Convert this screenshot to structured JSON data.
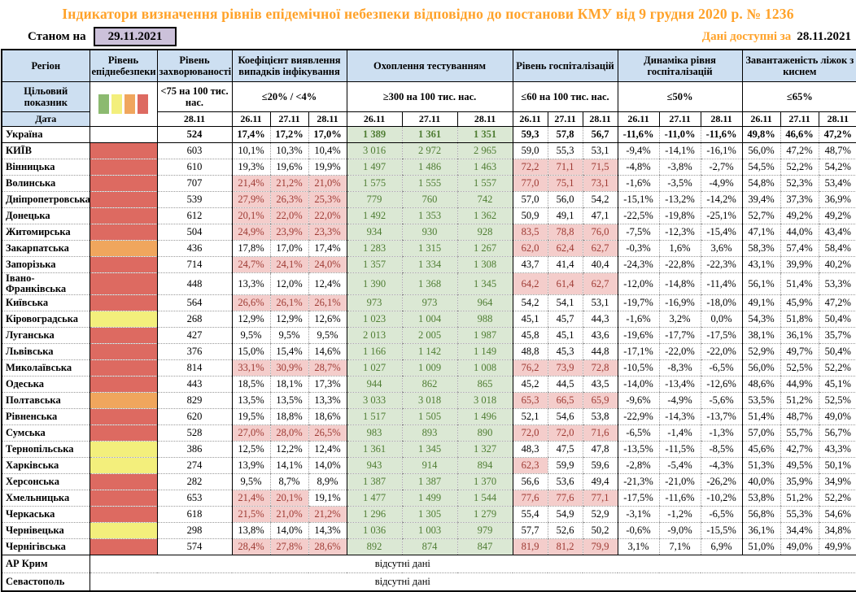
{
  "title": "Індикатори визначення рівнів епідемічної небезпеки відповідно до постанови КМУ від 9 грудня 2020 р. № 1236",
  "topbar": {
    "as_of_label": "Станом на",
    "as_of_date": "29.11.2021",
    "available_label": "Дані доступні за",
    "available_date": "28.11.2021"
  },
  "colors": {
    "title_accent": "#FFA229",
    "header_fill": "#CDDFF1",
    "asof_fill": "#CCC1DA",
    "alert_fill": "#F4CDCB",
    "alert_text": "#9E3A33",
    "good_fill": "#DBE8D4",
    "good_text": "#4F7D33"
  },
  "legend": {
    "order": [
      "green",
      "yellow",
      "orange",
      "red"
    ],
    "colors": {
      "green": "#8CBA70",
      "yellow": "#F3EF7C",
      "orange": "#F0A65D",
      "red": "#DD6A61"
    }
  },
  "table": {
    "header": {
      "region_label": "Регіон",
      "target_label": "Цільовий показник",
      "date_label": "Дата",
      "groups": [
        {
          "id": "risk",
          "label": "Рівень епіднебезпеки"
        },
        {
          "id": "incidence",
          "label": "Рівень захворюваності",
          "target": "<75 на 100 тис. нас.",
          "dates": [
            "28.11"
          ]
        },
        {
          "id": "detection",
          "label": "Коефіцієнт виявлення випадків інфікування",
          "target": "≤20% / <4%",
          "dates": [
            "26.11",
            "27.11",
            "28.11"
          ]
        },
        {
          "id": "testing",
          "label": "Охоплення тестуванням",
          "target": "≥300 на 100 тис. нас.",
          "dates": [
            "26.11",
            "27.11",
            "28.11"
          ]
        },
        {
          "id": "hospitalization",
          "label": "Рівень госпіталізацій",
          "target": "≤60 на 100 тис. нас.",
          "dates": [
            "26.11",
            "27.11",
            "28.11"
          ]
        },
        {
          "id": "dynamics",
          "label": "Динаміка рівня госпіталізацій",
          "target": "≤50%",
          "dates": [
            "26.11",
            "27.11",
            "28.11"
          ]
        },
        {
          "id": "oxygen",
          "label": "Завантаженість ліжок з киснем",
          "target": "≤65%",
          "dates": [
            "26.11",
            "27.11",
            "28.11"
          ]
        }
      ]
    },
    "thresholds": {
      "detection": 20,
      "testing_min": 300,
      "hospitalization": 60,
      "dynamics": 50,
      "oxygen": 65
    },
    "rows": [
      {
        "region": "Україна",
        "risk": "none",
        "bold": true,
        "incidence": "524",
        "detection": [
          "17,4%",
          "17,2%",
          "17,0%"
        ],
        "testing": [
          "1 389",
          "1 361",
          "1 351"
        ],
        "hospitalization": [
          "59,3",
          "57,8",
          "56,7"
        ],
        "dynamics": [
          "-11,6%",
          "-11,0%",
          "-11,6%"
        ],
        "oxygen": [
          "49,8%",
          "46,6%",
          "47,2%"
        ]
      },
      {
        "region": "КИЇВ",
        "risk": "red",
        "incidence": "603",
        "detection": [
          "10,1%",
          "10,3%",
          "10,4%"
        ],
        "testing": [
          "3 016",
          "2 972",
          "2 965"
        ],
        "hospitalization": [
          "59,0",
          "55,3",
          "53,1"
        ],
        "dynamics": [
          "-9,4%",
          "-14,1%",
          "-16,1%"
        ],
        "oxygen": [
          "56,0%",
          "47,2%",
          "48,7%"
        ]
      },
      {
        "region": "Вінницька",
        "risk": "red",
        "incidence": "610",
        "detection": [
          "19,3%",
          "19,6%",
          "19,9%"
        ],
        "testing": [
          "1 497",
          "1 486",
          "1 463"
        ],
        "hospitalization": [
          "72,2",
          "71,1",
          "71,5"
        ],
        "dynamics": [
          "-4,8%",
          "-3,8%",
          "-2,7%"
        ],
        "oxygen": [
          "54,5%",
          "52,2%",
          "54,2%"
        ]
      },
      {
        "region": "Волинська",
        "risk": "red",
        "incidence": "707",
        "detection": [
          "21,4%",
          "21,2%",
          "21,0%"
        ],
        "testing": [
          "1 575",
          "1 555",
          "1 557"
        ],
        "hospitalization": [
          "77,0",
          "75,1",
          "73,1"
        ],
        "dynamics": [
          "-1,6%",
          "-3,5%",
          "-4,9%"
        ],
        "oxygen": [
          "54,8%",
          "52,3%",
          "53,4%"
        ]
      },
      {
        "region": "Дніпропетровська",
        "risk": "red",
        "incidence": "539",
        "detection": [
          "27,9%",
          "26,3%",
          "25,3%"
        ],
        "testing": [
          "779",
          "760",
          "742"
        ],
        "hospitalization": [
          "57,0",
          "56,0",
          "54,2"
        ],
        "dynamics": [
          "-15,1%",
          "-13,2%",
          "-14,2%"
        ],
        "oxygen": [
          "39,4%",
          "37,3%",
          "36,9%"
        ]
      },
      {
        "region": "Донецька",
        "risk": "red",
        "incidence": "612",
        "detection": [
          "20,1%",
          "22,0%",
          "22,0%"
        ],
        "testing": [
          "1 492",
          "1 353",
          "1 362"
        ],
        "hospitalization": [
          "50,9",
          "49,1",
          "47,1"
        ],
        "dynamics": [
          "-22,5%",
          "-19,8%",
          "-25,1%"
        ],
        "oxygen": [
          "52,7%",
          "49,2%",
          "49,2%"
        ]
      },
      {
        "region": "Житомирська",
        "risk": "red",
        "incidence": "504",
        "detection": [
          "24,9%",
          "23,9%",
          "23,3%"
        ],
        "testing": [
          "934",
          "930",
          "928"
        ],
        "hospitalization": [
          "83,5",
          "78,8",
          "76,0"
        ],
        "dynamics": [
          "-7,5%",
          "-12,3%",
          "-15,4%"
        ],
        "oxygen": [
          "47,1%",
          "44,0%",
          "43,4%"
        ]
      },
      {
        "region": "Закарпатська",
        "risk": "orange",
        "incidence": "436",
        "detection": [
          "17,8%",
          "17,0%",
          "17,4%"
        ],
        "testing": [
          "1 283",
          "1 315",
          "1 267"
        ],
        "hospitalization": [
          "62,0",
          "62,4",
          "62,7"
        ],
        "dynamics": [
          "-0,3%",
          "1,6%",
          "3,6%"
        ],
        "oxygen": [
          "58,3%",
          "57,4%",
          "58,4%"
        ]
      },
      {
        "region": "Запорізька",
        "risk": "red",
        "incidence": "714",
        "detection": [
          "24,7%",
          "24,1%",
          "24,0%"
        ],
        "testing": [
          "1 357",
          "1 334",
          "1 308"
        ],
        "hospitalization": [
          "43,7",
          "41,4",
          "40,4"
        ],
        "dynamics": [
          "-24,3%",
          "-22,8%",
          "-22,3%"
        ],
        "oxygen": [
          "43,1%",
          "39,9%",
          "40,2%"
        ]
      },
      {
        "region": "Івано-Франківська",
        "risk": "red",
        "incidence": "448",
        "detection": [
          "13,3%",
          "12,0%",
          "12,4%"
        ],
        "testing": [
          "1 390",
          "1 368",
          "1 345"
        ],
        "hospitalization": [
          "64,2",
          "61,4",
          "62,7"
        ],
        "dynamics": [
          "-12,0%",
          "-14,8%",
          "-11,4%"
        ],
        "oxygen": [
          "56,1%",
          "51,4%",
          "53,3%"
        ]
      },
      {
        "region": "Київська",
        "risk": "red",
        "incidence": "564",
        "detection": [
          "26,6%",
          "26,1%",
          "26,1%"
        ],
        "testing": [
          "973",
          "973",
          "964"
        ],
        "hospitalization": [
          "54,2",
          "54,1",
          "53,1"
        ],
        "dynamics": [
          "-19,7%",
          "-16,9%",
          "-18,0%"
        ],
        "oxygen": [
          "49,1%",
          "45,9%",
          "47,2%"
        ]
      },
      {
        "region": "Кіровоградська",
        "risk": "yellow",
        "incidence": "268",
        "detection": [
          "12,9%",
          "12,9%",
          "12,6%"
        ],
        "testing": [
          "1 023",
          "1 004",
          "988"
        ],
        "hospitalization": [
          "45,1",
          "45,7",
          "44,3"
        ],
        "dynamics": [
          "-1,6%",
          "3,2%",
          "0,0%"
        ],
        "oxygen": [
          "54,3%",
          "51,8%",
          "50,4%"
        ]
      },
      {
        "region": "Луганська",
        "risk": "red",
        "incidence": "427",
        "detection": [
          "9,5%",
          "9,5%",
          "9,5%"
        ],
        "testing": [
          "2 013",
          "2 005",
          "1 987"
        ],
        "hospitalization": [
          "45,8",
          "45,1",
          "43,6"
        ],
        "dynamics": [
          "-19,6%",
          "-17,7%",
          "-17,5%"
        ],
        "oxygen": [
          "38,1%",
          "36,1%",
          "35,7%"
        ]
      },
      {
        "region": "Львівська",
        "risk": "red",
        "incidence": "376",
        "detection": [
          "15,0%",
          "15,4%",
          "14,6%"
        ],
        "testing": [
          "1 166",
          "1 142",
          "1 149"
        ],
        "hospitalization": [
          "48,8",
          "45,3",
          "44,8"
        ],
        "dynamics": [
          "-17,1%",
          "-22,0%",
          "-22,0%"
        ],
        "oxygen": [
          "52,9%",
          "49,7%",
          "50,4%"
        ]
      },
      {
        "region": "Миколаївська",
        "risk": "red",
        "incidence": "814",
        "detection": [
          "33,1%",
          "30,9%",
          "28,7%"
        ],
        "testing": [
          "1 027",
          "1 009",
          "1 008"
        ],
        "hospitalization": [
          "76,2",
          "73,9",
          "72,8"
        ],
        "dynamics": [
          "-10,5%",
          "-8,3%",
          "-6,5%"
        ],
        "oxygen": [
          "56,0%",
          "52,5%",
          "52,2%"
        ]
      },
      {
        "region": "Одеська",
        "risk": "red",
        "incidence": "443",
        "detection": [
          "18,5%",
          "18,1%",
          "17,3%"
        ],
        "testing": [
          "944",
          "862",
          "865"
        ],
        "hospitalization": [
          "45,2",
          "44,5",
          "43,5"
        ],
        "dynamics": [
          "-14,0%",
          "-13,4%",
          "-12,6%"
        ],
        "oxygen": [
          "48,6%",
          "44,9%",
          "45,1%"
        ]
      },
      {
        "region": "Полтавська",
        "risk": "orange",
        "incidence": "829",
        "detection": [
          "13,5%",
          "13,5%",
          "13,3%"
        ],
        "testing": [
          "3 033",
          "3 018",
          "3 018"
        ],
        "hospitalization": [
          "65,3",
          "66,5",
          "65,9"
        ],
        "dynamics": [
          "-9,6%",
          "-4,9%",
          "-5,6%"
        ],
        "oxygen": [
          "53,5%",
          "51,2%",
          "52,5%"
        ]
      },
      {
        "region": "Рівненська",
        "risk": "red",
        "incidence": "620",
        "detection": [
          "19,5%",
          "18,8%",
          "18,6%"
        ],
        "testing": [
          "1 517",
          "1 505",
          "1 496"
        ],
        "hospitalization": [
          "52,1",
          "54,6",
          "53,8"
        ],
        "dynamics": [
          "-22,9%",
          "-14,3%",
          "-13,7%"
        ],
        "oxygen": [
          "51,4%",
          "48,7%",
          "49,0%"
        ]
      },
      {
        "region": "Сумська",
        "risk": "red",
        "incidence": "528",
        "detection": [
          "27,0%",
          "28,0%",
          "26,5%"
        ],
        "testing": [
          "983",
          "893",
          "890"
        ],
        "hospitalization": [
          "72,0",
          "72,0",
          "71,6"
        ],
        "dynamics": [
          "-6,5%",
          "-1,4%",
          "-1,3%"
        ],
        "oxygen": [
          "57,0%",
          "55,7%",
          "56,7%"
        ]
      },
      {
        "region": "Тернопільська",
        "risk": "yellow",
        "incidence": "386",
        "detection": [
          "12,5%",
          "12,2%",
          "12,4%"
        ],
        "testing": [
          "1 361",
          "1 345",
          "1 327"
        ],
        "hospitalization": [
          "48,3",
          "47,5",
          "47,8"
        ],
        "dynamics": [
          "-13,5%",
          "-11,5%",
          "-8,5%"
        ],
        "oxygen": [
          "45,6%",
          "42,7%",
          "43,3%"
        ]
      },
      {
        "region": "Харківська",
        "risk": "yellow",
        "incidence": "274",
        "detection": [
          "13,9%",
          "14,1%",
          "14,0%"
        ],
        "testing": [
          "943",
          "914",
          "894"
        ],
        "hospitalization": [
          "62,3",
          "59,9",
          "59,6"
        ],
        "dynamics": [
          "-2,8%",
          "-5,4%",
          "-4,3%"
        ],
        "oxygen": [
          "51,3%",
          "49,5%",
          "50,1%"
        ]
      },
      {
        "region": "Херсонська",
        "risk": "red",
        "incidence": "282",
        "detection": [
          "9,5%",
          "8,7%",
          "8,9%"
        ],
        "testing": [
          "1 387",
          "1 387",
          "1 370"
        ],
        "hospitalization": [
          "56,6",
          "53,6",
          "49,4"
        ],
        "dynamics": [
          "-21,3%",
          "-21,0%",
          "-26,2%"
        ],
        "oxygen": [
          "40,0%",
          "35,9%",
          "34,9%"
        ]
      },
      {
        "region": "Хмельницька",
        "risk": "red",
        "incidence": "653",
        "detection": [
          "21,4%",
          "20,1%",
          "19,1%"
        ],
        "testing": [
          "1 477",
          "1 499",
          "1 544"
        ],
        "hospitalization": [
          "77,6",
          "77,6",
          "77,1"
        ],
        "dynamics": [
          "-17,5%",
          "-11,6%",
          "-10,2%"
        ],
        "oxygen": [
          "53,8%",
          "51,2%",
          "52,2%"
        ]
      },
      {
        "region": "Черкаська",
        "risk": "red",
        "incidence": "618",
        "detection": [
          "21,5%",
          "21,0%",
          "21,2%"
        ],
        "testing": [
          "1 296",
          "1 305",
          "1 279"
        ],
        "hospitalization": [
          "55,4",
          "54,9",
          "52,9"
        ],
        "dynamics": [
          "-3,1%",
          "-1,2%",
          "-6,5%"
        ],
        "oxygen": [
          "56,8%",
          "55,3%",
          "54,6%"
        ]
      },
      {
        "region": "Чернівецька",
        "risk": "yellow",
        "incidence": "298",
        "detection": [
          "13,8%",
          "14,0%",
          "14,3%"
        ],
        "testing": [
          "1 036",
          "1 003",
          "979"
        ],
        "hospitalization": [
          "57,7",
          "52,6",
          "50,2"
        ],
        "dynamics": [
          "-0,6%",
          "-9,0%",
          "-15,5%"
        ],
        "oxygen": [
          "36,1%",
          "34,4%",
          "34,8%"
        ]
      },
      {
        "region": "Чернігівська",
        "risk": "red",
        "incidence": "574",
        "detection": [
          "28,4%",
          "27,8%",
          "28,6%"
        ],
        "testing": [
          "892",
          "874",
          "847"
        ],
        "hospitalization": [
          "81,9",
          "81,2",
          "79,9"
        ],
        "dynamics": [
          "3,1%",
          "7,1%",
          "6,9%"
        ],
        "oxygen": [
          "51,0%",
          "49,0%",
          "49,9%"
        ]
      }
    ],
    "no_data_rows": [
      {
        "region": "АР Крим",
        "note": "відсутні дані"
      },
      {
        "region": "Севастополь",
        "note": "відсутні дані"
      }
    ]
  }
}
